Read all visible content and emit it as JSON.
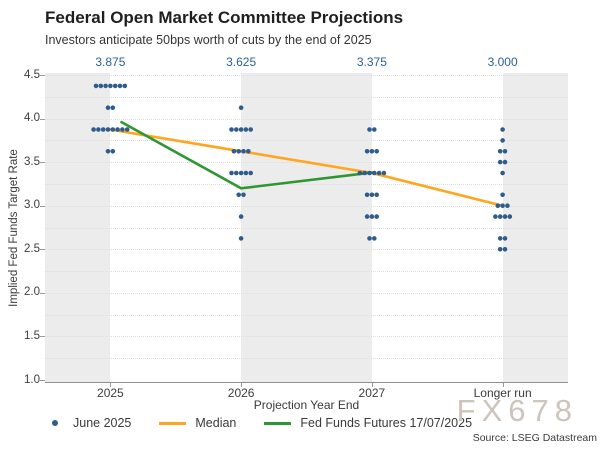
{
  "title": "Federal Open Market Committee Projections",
  "subtitle": "Investors anticipate 50bps worth of cuts by the end of 2025",
  "watermark": "FX678",
  "source": "Source: LSEG Datastream",
  "colors": {
    "dot": "#2e5c8c",
    "median_line": "#FFA51E",
    "futures_line": "#2F9732",
    "top_label_blue": "#2b5f98",
    "band_gray": "#ececec"
  },
  "legend": {
    "items": [
      {
        "marker": "dot",
        "label": "June 2025",
        "color": "#2e5c8c"
      },
      {
        "marker": "line",
        "label": "Median",
        "color": "#FFA51E"
      },
      {
        "marker": "line",
        "label": "Fed Funds Futures 17/07/2025",
        "color": "#2F9732"
      }
    ]
  },
  "chart_data": {
    "type": "scatter",
    "title": "Federal Open Market Committee Projections",
    "subtitle": "Investors anticipate 50bps worth of cuts by the end of 2025",
    "xlabel": "Projection Year End",
    "ylabel": "Implied Fed Funds Target Rate",
    "categories": [
      "2025",
      "2026",
      "2027",
      "Longer run"
    ],
    "median_top_labels": [
      "3.875",
      "3.625",
      "3.375",
      "3.000"
    ],
    "ylim": [
      1.0,
      4.5
    ],
    "yticks": [
      4.5,
      4.0,
      3.5,
      3.0,
      2.5,
      2.0,
      1.5,
      1.0
    ],
    "grid_step": 0.25,
    "legend_position": "bottom",
    "dot_plot": [
      {
        "category": "2025",
        "rows": [
          {
            "rate": 4.375,
            "count": 7
          },
          {
            "rate": 4.125,
            "count": 2
          },
          {
            "rate": 3.875,
            "count": 8
          },
          {
            "rate": 3.625,
            "count": 2
          }
        ]
      },
      {
        "category": "2026",
        "rows": [
          {
            "rate": 4.125,
            "count": 1
          },
          {
            "rate": 3.875,
            "count": 5
          },
          {
            "rate": 3.625,
            "count": 4
          },
          {
            "rate": 3.375,
            "count": 5
          },
          {
            "rate": 3.125,
            "count": 2
          },
          {
            "rate": 2.875,
            "count": 1
          },
          {
            "rate": 2.625,
            "count": 1
          }
        ]
      },
      {
        "category": "2027",
        "rows": [
          {
            "rate": 3.875,
            "count": 2
          },
          {
            "rate": 3.625,
            "count": 3
          },
          {
            "rate": 3.375,
            "count": 6
          },
          {
            "rate": 3.125,
            "count": 3
          },
          {
            "rate": 2.875,
            "count": 3
          },
          {
            "rate": 2.625,
            "count": 2
          }
        ]
      },
      {
        "category": "Longer run",
        "rows": [
          {
            "rate": 3.875,
            "count": 1
          },
          {
            "rate": 3.75,
            "count": 1
          },
          {
            "rate": 3.625,
            "count": 2
          },
          {
            "rate": 3.5,
            "count": 2
          },
          {
            "rate": 3.375,
            "count": 1
          },
          {
            "rate": 3.125,
            "count": 1
          },
          {
            "rate": 3.0,
            "count": 3
          },
          {
            "rate": 2.875,
            "count": 4
          },
          {
            "rate": 2.625,
            "count": 2
          },
          {
            "rate": 2.5,
            "count": 2
          }
        ]
      }
    ],
    "series": [
      {
        "name": "Median",
        "color": "#FFA51E",
        "points": [
          {
            "cat": 0,
            "rate": 3.875
          },
          {
            "cat": 1,
            "rate": 3.625
          },
          {
            "cat": 2,
            "rate": 3.375
          },
          {
            "cat": 3,
            "rate": 3.0
          }
        ]
      },
      {
        "name": "Fed Funds Futures 17/07/2025",
        "color": "#2F9732",
        "points": [
          {
            "cat": 0.085,
            "rate": 3.96
          },
          {
            "cat": 1,
            "rate": 3.2
          },
          {
            "cat": 2,
            "rate": 3.38
          }
        ]
      }
    ]
  }
}
